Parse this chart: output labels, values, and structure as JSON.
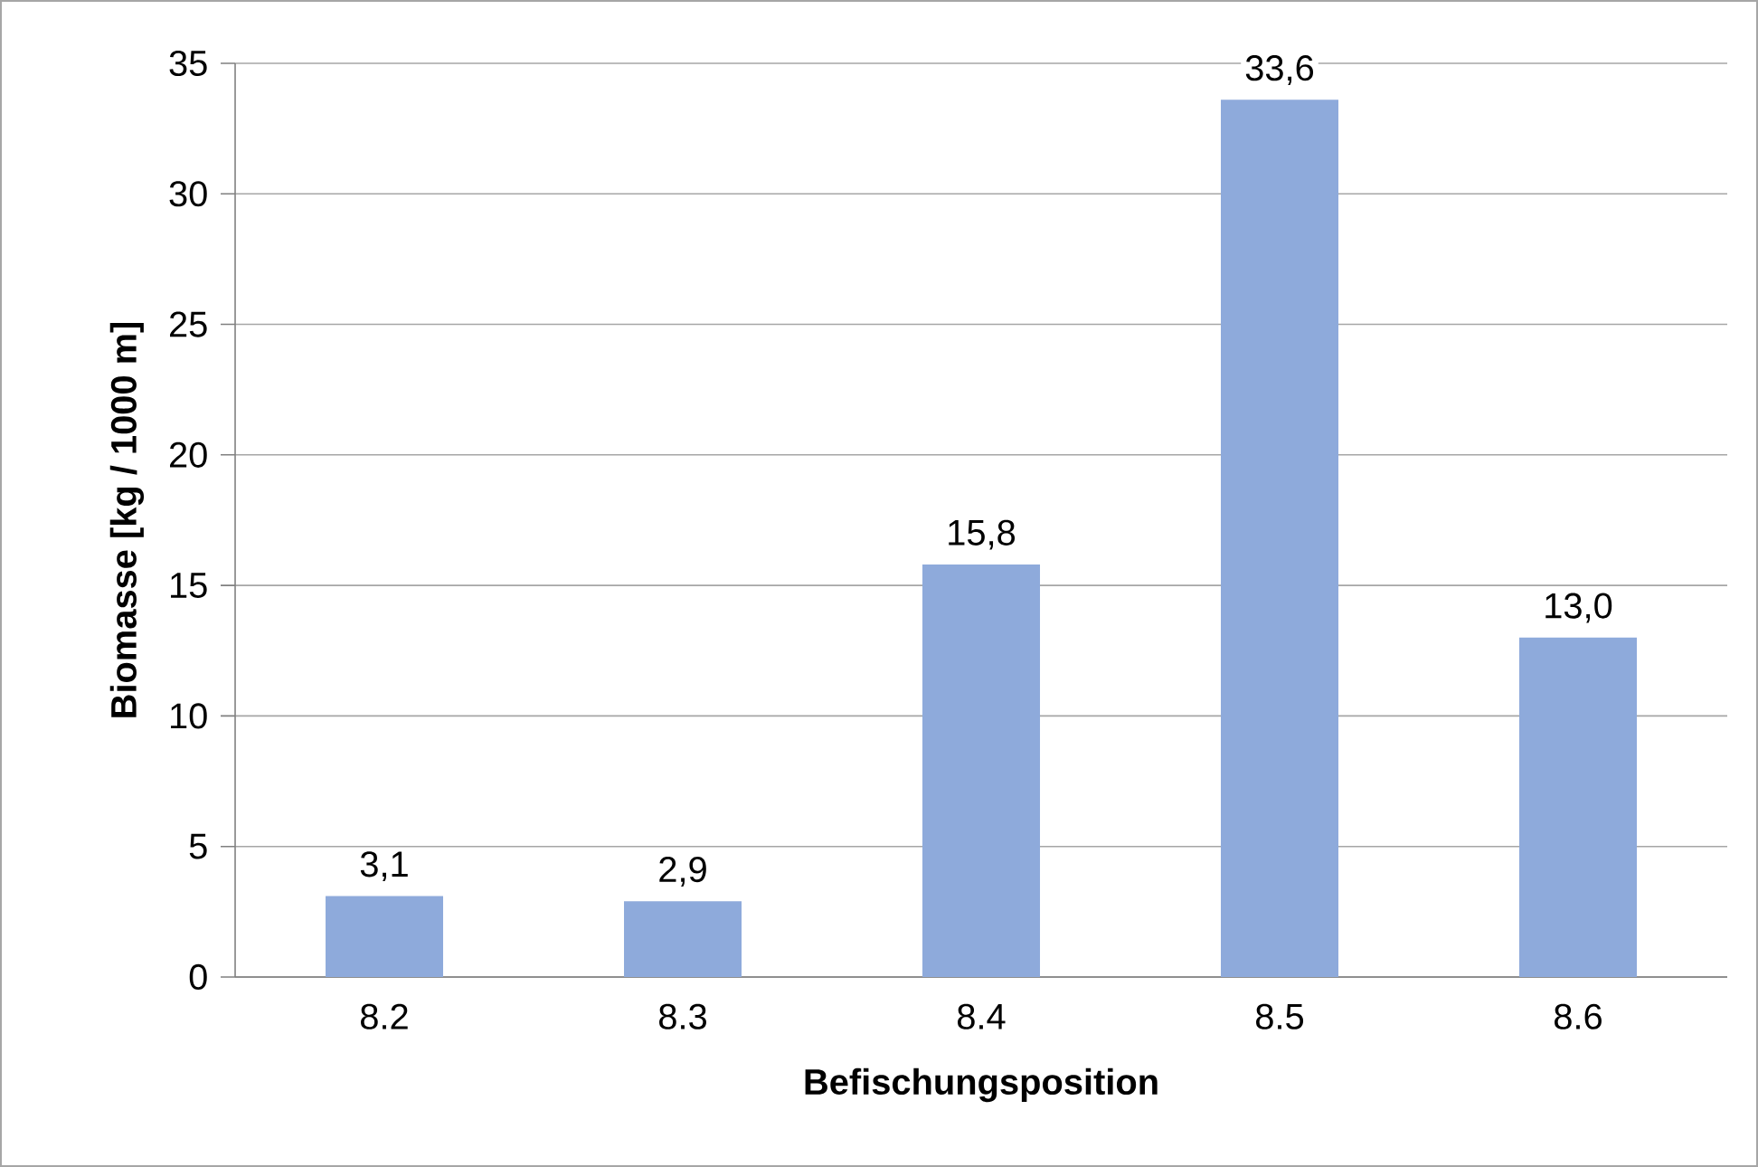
{
  "chart_data": {
    "type": "bar",
    "xlabel": "Befischungsposition",
    "ylabel": "Biomasse [kg / 1000 m]",
    "categories": [
      "8.2",
      "8.3",
      "8.4",
      "8.5",
      "8.6"
    ],
    "values": [
      3.1,
      2.9,
      15.8,
      33.6,
      13.0
    ],
    "value_labels": [
      "3,1",
      "2,9",
      "15,8",
      "33,6",
      "13,0"
    ],
    "color": "#8eaadb",
    "ylim": [
      0,
      35
    ],
    "yticks": [
      0,
      5,
      10,
      15,
      20,
      25,
      30,
      35
    ],
    "grid": "y"
  }
}
